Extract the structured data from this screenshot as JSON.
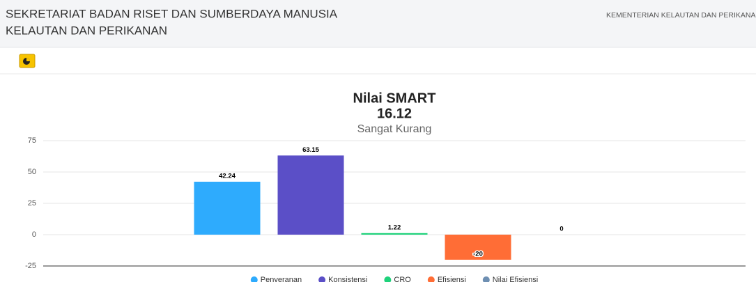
{
  "header": {
    "title": [
      "SEKRETARIAT BADAN RISET DAN SUMBERDAYA MANUSIA",
      "KELAUTAN DAN PERIKANAN"
    ],
    "org": "KEMENTERIAN KELAUTAN DAN PERIKANA"
  },
  "chart_data": {
    "type": "bar",
    "title": "Nilai SMART",
    "subtitle": [
      "16.12",
      "Sangat Kurang"
    ],
    "series": [
      {
        "name": "Penyeranan",
        "color": "#2eabfd",
        "values": [
          42.24
        ]
      },
      {
        "name": "Konsistensi",
        "color": "#5b4fc7",
        "values": [
          63.15
        ]
      },
      {
        "name": "CRO",
        "color": "#1fd27b",
        "values": [
          1.22
        ]
      },
      {
        "name": "Efisiensi",
        "color": "#ff6d36",
        "values": [
          -20
        ]
      },
      {
        "name": "Nilai Efisiensi",
        "color": "#6e8fb2",
        "values": [
          0
        ]
      }
    ],
    "ylim": [
      -25,
      75
    ],
    "yticks": [
      -25,
      0,
      25,
      50,
      75
    ],
    "grid": true,
    "legend": "bottom"
  }
}
